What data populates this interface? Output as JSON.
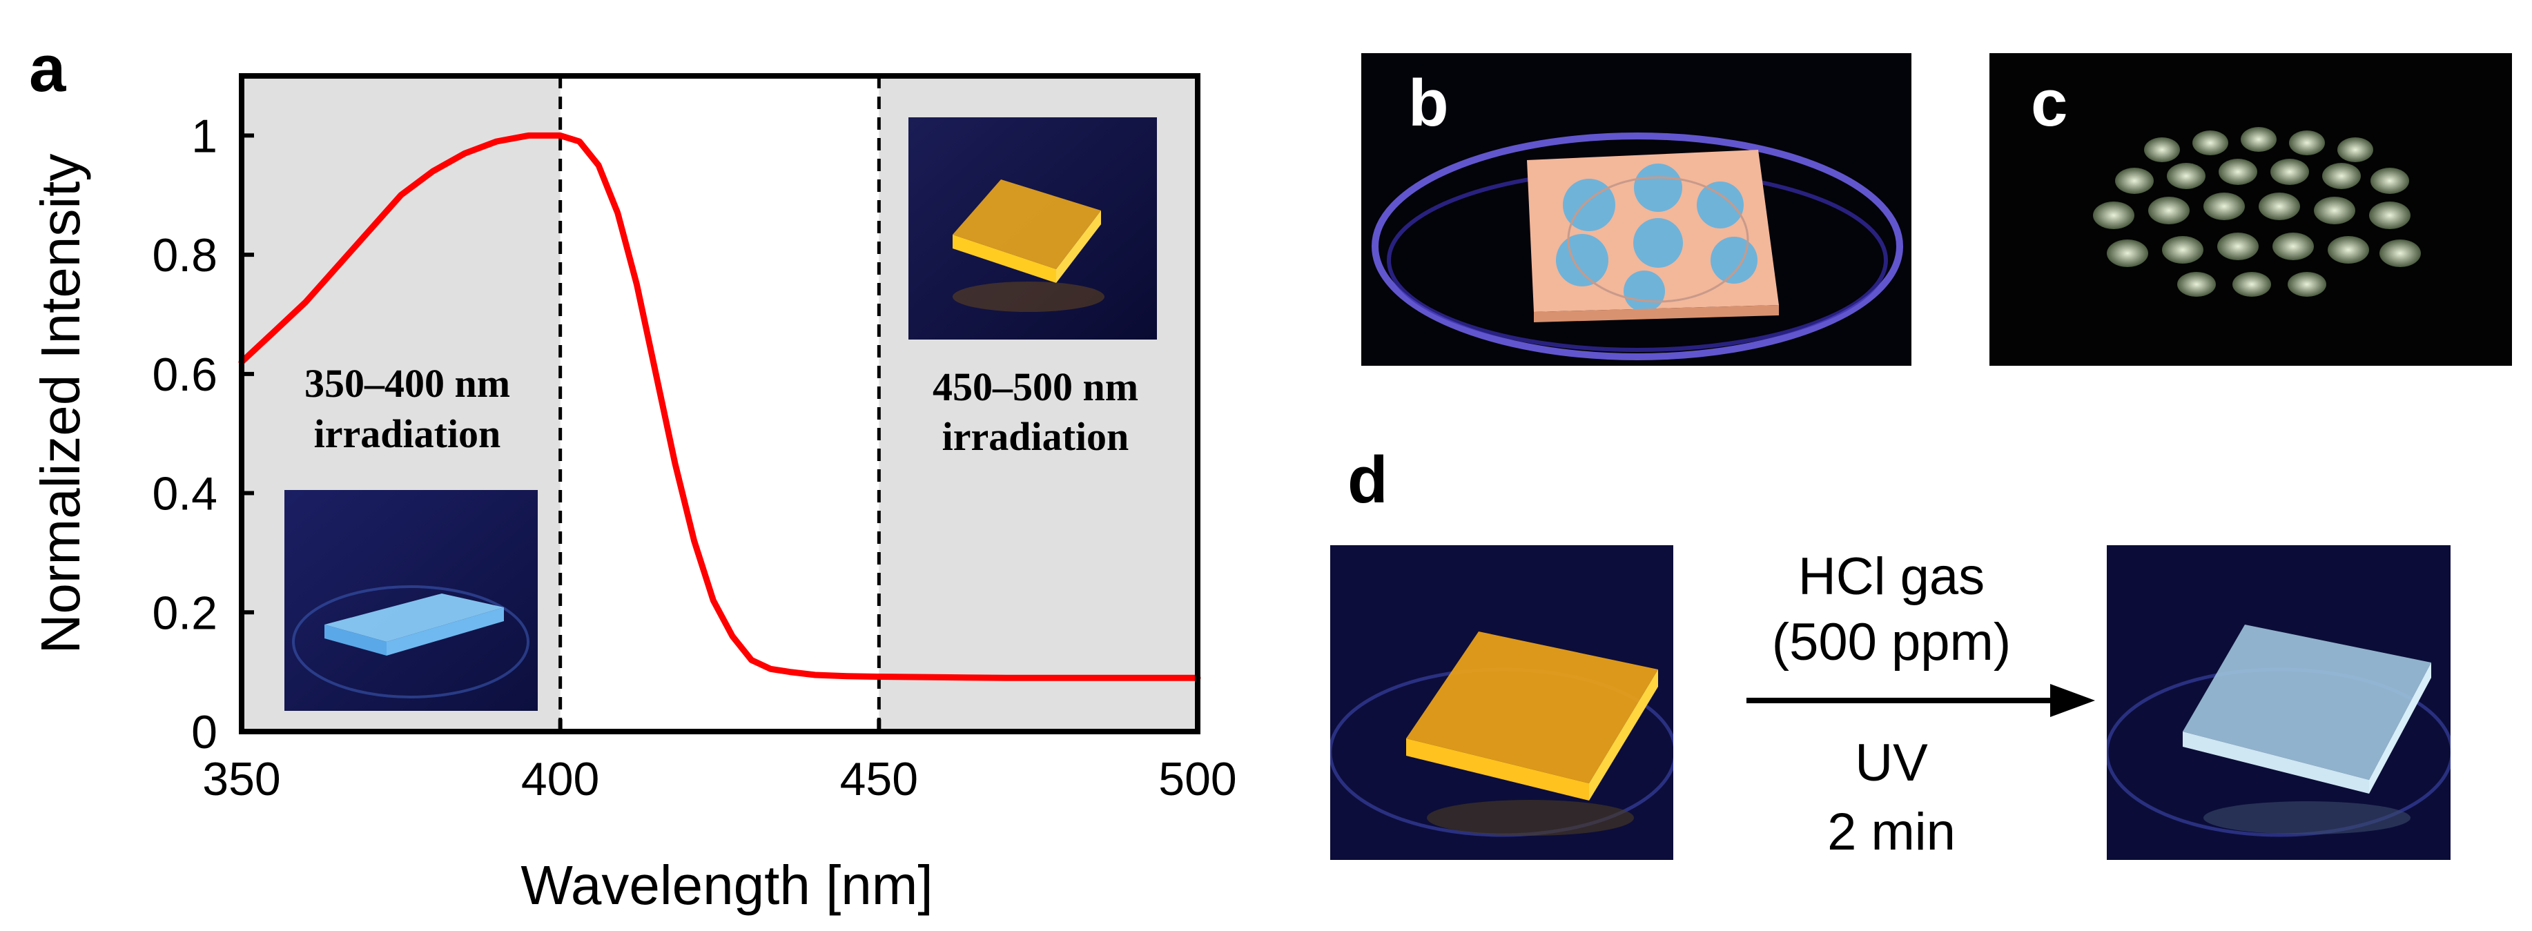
{
  "panels": {
    "a": "a",
    "b": "b",
    "c": "c",
    "d": "d"
  },
  "chart_data": {
    "type": "line",
    "xlabel": "Wavelength  [nm]",
    "ylabel": "Normalized  Intensity",
    "xlim": [
      350,
      500
    ],
    "ylim": [
      0,
      1.1
    ],
    "xticks": [
      "350",
      "400",
      "450",
      "500"
    ],
    "yticks": [
      "0",
      "0.2",
      "0.4",
      "0.6",
      "0.8",
      "1"
    ],
    "grid": false,
    "line_color": "#ff0000",
    "shaded_regions": [
      {
        "range": [
          350,
          400
        ],
        "color": "#e0e0e0"
      },
      {
        "range": [
          450,
          500
        ],
        "color": "#e0e0e0"
      }
    ],
    "dashed_lines_x": [
      400,
      450
    ],
    "series": [
      {
        "x": [
          350,
          355,
          360,
          365,
          370,
          375,
          380,
          385,
          390,
          395,
          400,
          403,
          406,
          409,
          412,
          415,
          418,
          421,
          424,
          427,
          430,
          433,
          436,
          440,
          445,
          450,
          460,
          470,
          480,
          490,
          500
        ],
        "y": [
          0.62,
          0.67,
          0.72,
          0.78,
          0.84,
          0.9,
          0.94,
          0.97,
          0.99,
          1.0,
          1.0,
          0.99,
          0.95,
          0.87,
          0.75,
          0.6,
          0.45,
          0.32,
          0.22,
          0.16,
          0.12,
          0.105,
          0.1,
          0.095,
          0.093,
          0.092,
          0.091,
          0.09,
          0.09,
          0.09,
          0.09
        ]
      }
    ],
    "annotations": [
      {
        "line1": "350–400 nm",
        "line2": "irradiation"
      },
      {
        "line1": "450–500 nm",
        "line2": "irradiation"
      }
    ]
  },
  "panel_d": {
    "arrow_top_line1": "HCl gas",
    "arrow_top_line2": "(500 ppm)",
    "arrow_bottom_line1": "UV",
    "arrow_bottom_line2": "2 min"
  }
}
